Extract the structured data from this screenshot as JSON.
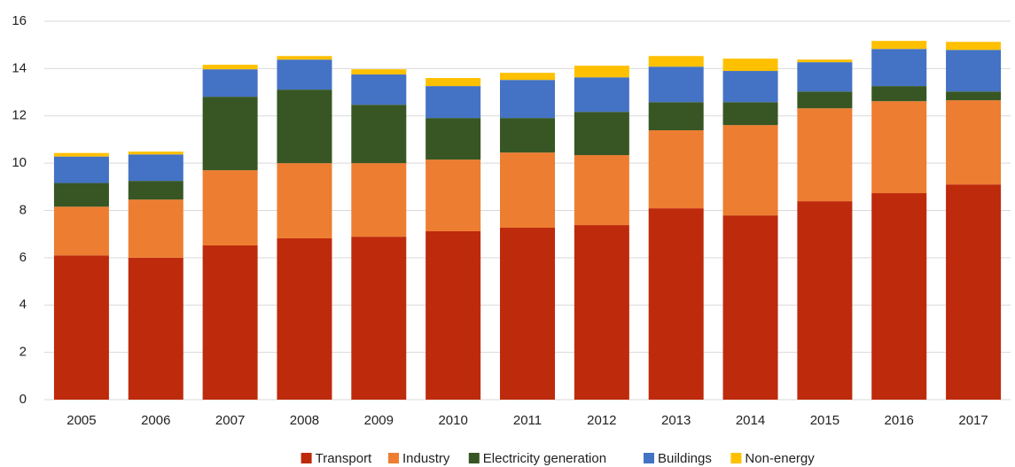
{
  "chart_data": {
    "type": "stacked_bar",
    "categories": [
      "2005",
      "2006",
      "2007",
      "2008",
      "2009",
      "2010",
      "2011",
      "2012",
      "2013",
      "2014",
      "2015",
      "2016",
      "2017"
    ],
    "series": [
      {
        "name": "Transport",
        "color": "#be2a0c",
        "values": [
          6.1,
          6.0,
          6.52,
          6.82,
          6.89,
          7.12,
          7.27,
          7.38,
          8.09,
          7.79,
          8.39,
          8.73,
          9.1
        ]
      },
      {
        "name": "Industry",
        "color": "#ed7d31",
        "values": [
          2.06,
          2.46,
          3.18,
          3.18,
          3.11,
          3.03,
          3.18,
          2.96,
          3.3,
          3.82,
          3.93,
          3.89,
          3.56
        ]
      },
      {
        "name": "Electricity generation",
        "color": "#375623",
        "values": [
          1.0,
          0.79,
          3.11,
          3.11,
          2.47,
          1.76,
          1.46,
          1.83,
          1.19,
          0.97,
          0.71,
          0.64,
          0.37
        ]
      },
      {
        "name": "Buildings",
        "color": "#4472c4",
        "values": [
          1.12,
          1.12,
          1.16,
          1.27,
          1.28,
          1.35,
          1.61,
          1.46,
          1.5,
          1.32,
          1.24,
          1.57,
          1.76
        ]
      },
      {
        "name": "Non-energy",
        "color": "#ffc000",
        "values": [
          0.15,
          0.12,
          0.19,
          0.15,
          0.22,
          0.34,
          0.3,
          0.49,
          0.45,
          0.52,
          0.11,
          0.34,
          0.34
        ]
      }
    ],
    "ylim": [
      0,
      16
    ],
    "yticks": [
      0,
      2,
      4,
      6,
      8,
      10,
      12,
      14,
      16
    ],
    "grid": true,
    "legend": "bottom"
  }
}
